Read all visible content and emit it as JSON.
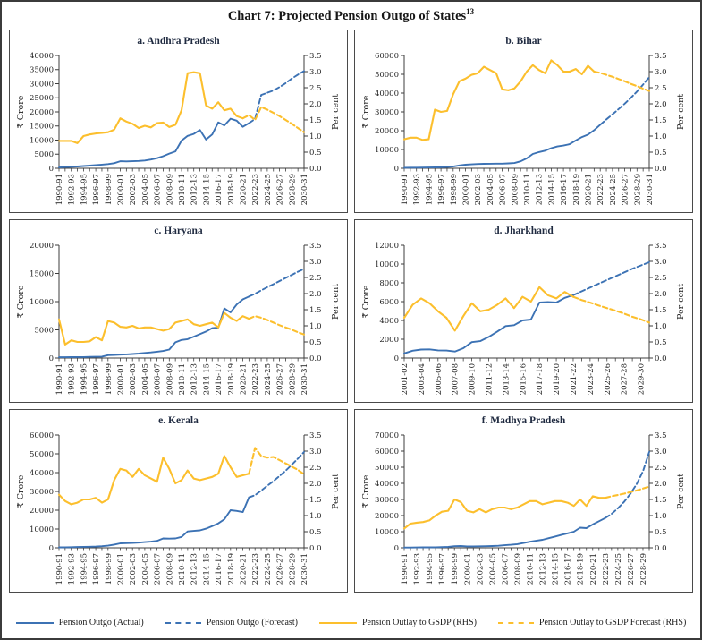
{
  "page": {
    "title": "Chart 7: Projected Pension Outgo of States",
    "title_sup": "13",
    "legend_position": "bottom"
  },
  "colors": {
    "actual_blue": "#3c72b4",
    "gsdp_yellow": "#fcbf2d",
    "axis": "#3d3d3d",
    "text": "#1e1e1e",
    "panel_title": "#1f2a40"
  },
  "legend": [
    {
      "label": "Pension Outgo (Actual)",
      "color": "#3c72b4",
      "dash": false
    },
    {
      "label": "Pension Outgo (Forecast)",
      "color": "#3c72b4",
      "dash": true
    },
    {
      "label": "Pension Outlay to GSDP (RHS)",
      "color": "#fcbf2d",
      "dash": false
    },
    {
      "label": "Pension Outlay to GSDP Forecast (RHS)",
      "color": "#fcbf2d",
      "dash": true
    }
  ],
  "chart_data": [
    {
      "id": "a",
      "type": "line",
      "title": "a. Andhra Pradesh",
      "ylabel_left": "₹ Crore",
      "ylabel_right": "Per cent",
      "left_axis": {
        "max": 40000,
        "step": 5000
      },
      "right_axis": {
        "max": 3.5,
        "step": 0.5
      },
      "label_every": 2,
      "years": [
        "1990-91",
        "1991-92",
        "1992-93",
        "1993-94",
        "1994-95",
        "1995-96",
        "1996-97",
        "1997-98",
        "1998-99",
        "1999-00",
        "2000-01",
        "2001-02",
        "2002-03",
        "2003-04",
        "2004-05",
        "2005-06",
        "2006-07",
        "2007-08",
        "2008-09",
        "2009-10",
        "2010-11",
        "2011-12",
        "2012-13",
        "2013-14",
        "2014-15",
        "2015-16",
        "2016-17",
        "2017-18",
        "2018-19",
        "2019-20",
        "2020-21",
        "2021-22",
        "2022-23",
        "2023-24",
        "2024-25",
        "2025-26",
        "2026-27",
        "2027-28",
        "2028-29",
        "2029-30",
        "2030-31"
      ],
      "series": {
        "actual": [
          300,
          400,
          500,
          650,
          800,
          950,
          1100,
          1300,
          1500,
          1800,
          2500,
          2450,
          2500,
          2600,
          2750,
          3100,
          3600,
          4300,
          5200,
          6000,
          9800,
          11500,
          12200,
          13600,
          10200,
          12000,
          16300,
          15200,
          17600,
          16900,
          14700,
          16000
        ],
        "forecast": {
          "start": 31,
          "values": [
            16000,
            17500,
            26000,
            26800,
            27600,
            28800,
            30200,
            31800,
            33200,
            34500
          ]
        },
        "gsdp": [
          0.85,
          0.85,
          0.85,
          0.78,
          1.0,
          1.05,
          1.08,
          1.1,
          1.12,
          1.2,
          1.55,
          1.45,
          1.38,
          1.25,
          1.32,
          1.27,
          1.4,
          1.42,
          1.28,
          1.35,
          1.8,
          2.95,
          2.98,
          2.95,
          1.95,
          1.85,
          2.05,
          1.8,
          1.85,
          1.62,
          1.55
        ],
        "gsdp_forecast": {
          "start": 30,
          "values": [
            1.55,
            1.65,
            1.5,
            1.9,
            1.82,
            1.72,
            1.62,
            1.5,
            1.38,
            1.25,
            1.12
          ]
        }
      }
    },
    {
      "id": "b",
      "type": "line",
      "title": "b. Bihar",
      "ylabel_left": "₹ Crore",
      "ylabel_right": "Per cent",
      "left_axis": {
        "max": 60000,
        "step": 10000
      },
      "right_axis": {
        "max": 3.5,
        "step": 0.5
      },
      "label_every": 2,
      "years": [
        "1990-91",
        "1991-92",
        "1992-93",
        "1993-94",
        "1994-95",
        "1995-96",
        "1996-97",
        "1997-98",
        "1998-99",
        "1999-00",
        "2000-01",
        "2001-02",
        "2002-03",
        "2003-04",
        "2004-05",
        "2005-06",
        "2006-07",
        "2007-08",
        "2008-09",
        "2009-10",
        "2010-11",
        "2011-12",
        "2012-13",
        "2013-14",
        "2014-15",
        "2015-16",
        "2016-17",
        "2017-18",
        "2018-19",
        "2019-20",
        "2020-21",
        "2021-22",
        "2022-23",
        "2023-24",
        "2024-25",
        "2025-26",
        "2026-27",
        "2027-28",
        "2028-29",
        "2029-30",
        "2030-31"
      ],
      "series": {
        "actual": [
          300,
          320,
          350,
          380,
          420,
          460,
          520,
          650,
          950,
          1500,
          1900,
          2100,
          2300,
          2400,
          2450,
          2500,
          2500,
          2600,
          2800,
          3700,
          5300,
          7600,
          8600,
          9400,
          10700,
          11600,
          12100,
          12800,
          14800,
          16600,
          17900,
          20300,
          23200
        ],
        "forecast": {
          "start": 32,
          "values": [
            23200,
            26000,
            28700,
            31500,
            34400,
            37500,
            40800,
            44500,
            48500
          ]
        },
        "gsdp": [
          0.9,
          0.95,
          0.95,
          0.88,
          0.9,
          1.82,
          1.75,
          1.78,
          2.3,
          2.7,
          2.78,
          2.9,
          2.95,
          3.15,
          3.05,
          2.95,
          2.45,
          2.42,
          2.48,
          2.7,
          3.0,
          3.2,
          3.05,
          2.95,
          3.35,
          3.2,
          3.0,
          3.0,
          3.08,
          2.92,
          3.18,
          3.0
        ],
        "gsdp_forecast": {
          "start": 31,
          "values": [
            3.0,
            2.96,
            2.9,
            2.84,
            2.77,
            2.7,
            2.62,
            2.55,
            2.47,
            2.4
          ]
        }
      }
    },
    {
      "id": "c",
      "type": "line",
      "title": "c. Haryana",
      "ylabel_left": "₹ Crore",
      "ylabel_right": "Per cent",
      "left_axis": {
        "max": 20000,
        "step": 5000
      },
      "right_axis": {
        "max": 3.5,
        "step": 0.5
      },
      "label_every": 2,
      "years": [
        "1990-91",
        "1991-92",
        "1992-93",
        "1993-94",
        "1994-95",
        "1995-96",
        "1996-97",
        "1997-98",
        "1998-99",
        "1999-00",
        "2000-01",
        "2001-02",
        "2002-03",
        "2003-04",
        "2004-05",
        "2005-06",
        "2006-07",
        "2007-08",
        "2008-09",
        "2009-10",
        "2010-11",
        "2011-12",
        "2012-13",
        "2013-14",
        "2014-15",
        "2015-16",
        "2016-17",
        "2017-18",
        "2018-19",
        "2019-20",
        "2020-21",
        "2021-22",
        "2022-23",
        "2023-24",
        "2024-25",
        "2025-26",
        "2026-27",
        "2027-28",
        "2028-29",
        "2029-30",
        "2030-31"
      ],
      "series": {
        "actual": [
          150,
          150,
          160,
          170,
          180,
          200,
          230,
          260,
          500,
          550,
          600,
          650,
          720,
          800,
          900,
          1000,
          1120,
          1260,
          1500,
          2800,
          3200,
          3350,
          3800,
          4250,
          4700,
          5300,
          5400,
          8800,
          8100,
          9500,
          10400,
          10900
        ],
        "forecast": {
          "start": 31,
          "values": [
            10900,
            11400,
            12000,
            12550,
            13100,
            13650,
            14200,
            14750,
            15300,
            15800
          ]
        },
        "gsdp": [
          1.2,
          0.42,
          0.55,
          0.5,
          0.5,
          0.52,
          0.65,
          0.55,
          1.15,
          1.1,
          0.97,
          0.95,
          1.0,
          0.92,
          0.95,
          0.95,
          0.9,
          0.85,
          0.9,
          1.1,
          1.15,
          1.2,
          1.05,
          1.0,
          1.05,
          1.1,
          0.95,
          1.4,
          1.25,
          1.15,
          1.3,
          1.22
        ],
        "gsdp_forecast": {
          "start": 31,
          "values": [
            1.22,
            1.3,
            1.25,
            1.18,
            1.1,
            1.02,
            0.95,
            0.88,
            0.8,
            0.73
          ]
        }
      }
    },
    {
      "id": "d",
      "type": "line",
      "title": "d. Jharkhand",
      "ylabel_left": "₹ Crore",
      "ylabel_right": "Per cent",
      "left_axis": {
        "max": 12000,
        "step": 2000
      },
      "right_axis": {
        "max": 3.5,
        "step": 0.5
      },
      "label_every": 2,
      "years": [
        "2001-02",
        "2002-03",
        "2003-04",
        "2004-05",
        "2005-06",
        "2006-07",
        "2007-08",
        "2008-09",
        "2009-10",
        "2010-11",
        "2011-12",
        "2012-13",
        "2013-14",
        "2014-15",
        "2015-16",
        "2016-17",
        "2017-18",
        "2018-19",
        "2019-20",
        "2020-21",
        "2021-22",
        "2022-23",
        "2023-24",
        "2024-25",
        "2025-26",
        "2026-27",
        "2027-28",
        "2028-29",
        "2029-30",
        "2030-31"
      ],
      "series": {
        "actual": [
          500,
          780,
          900,
          920,
          820,
          800,
          700,
          1050,
          1700,
          1800,
          2250,
          2800,
          3400,
          3500,
          4000,
          4100,
          5900,
          5950,
          5900,
          6400,
          6700
        ],
        "forecast": {
          "start": 20,
          "values": [
            6700,
            7100,
            7500,
            7900,
            8300,
            8700,
            9100,
            9500,
            9850,
            10200
          ]
        },
        "gsdp": [
          1.25,
          1.65,
          1.85,
          1.7,
          1.45,
          1.25,
          0.85,
          1.3,
          1.7,
          1.45,
          1.5,
          1.65,
          1.85,
          1.55,
          1.9,
          1.75,
          2.2,
          1.95,
          1.85,
          2.05,
          1.9
        ],
        "gsdp_forecast": {
          "start": 20,
          "values": [
            1.9,
            1.8,
            1.72,
            1.63,
            1.55,
            1.47,
            1.38,
            1.28,
            1.2,
            1.1
          ]
        }
      }
    },
    {
      "id": "e",
      "type": "line",
      "title": "e. Kerala",
      "ylabel_left": "₹ Crore",
      "ylabel_right": "Per cent",
      "left_axis": {
        "max": 60000,
        "step": 10000
      },
      "right_axis": {
        "max": 3.5,
        "step": 0.5
      },
      "label_every": 2,
      "years": [
        "1990-91",
        "1991-92",
        "1992-93",
        "1993-94",
        "1994-95",
        "1995-96",
        "1996-97",
        "1997-98",
        "1998-99",
        "1999-00",
        "2000-01",
        "2001-02",
        "2002-03",
        "2003-04",
        "2004-05",
        "2005-06",
        "2006-07",
        "2007-08",
        "2008-09",
        "2009-10",
        "2010-11",
        "2011-12",
        "2012-13",
        "2013-14",
        "2014-15",
        "2015-16",
        "2016-17",
        "2017-18",
        "2018-19",
        "2019-20",
        "2020-21",
        "2021-22",
        "2022-23",
        "2023-24",
        "2024-25",
        "2025-26",
        "2026-27",
        "2027-28",
        "2028-29",
        "2029-30",
        "2030-31"
      ],
      "series": {
        "actual": [
          250,
          300,
          350,
          420,
          500,
          580,
          680,
          850,
          1150,
          1700,
          2400,
          2500,
          2600,
          2750,
          3050,
          3300,
          3700,
          5000,
          4900,
          5000,
          5800,
          8700,
          9000,
          9300,
          10200,
          11500,
          13000,
          15200,
          20000,
          19600,
          19000,
          26800
        ],
        "forecast": {
          "start": 31,
          "values": [
            26800,
            28000,
            30500,
            33000,
            35500,
            38200,
            41000,
            44200,
            47500,
            51000
          ]
        },
        "gsdp": [
          1.65,
          1.45,
          1.35,
          1.4,
          1.5,
          1.5,
          1.55,
          1.4,
          1.5,
          2.1,
          2.45,
          2.4,
          2.2,
          2.45,
          2.25,
          2.15,
          2.05,
          2.8,
          2.45,
          2.0,
          2.1,
          2.4,
          2.15,
          2.1,
          2.15,
          2.2,
          2.3,
          2.85,
          2.5,
          2.2,
          2.25,
          2.3
        ],
        "gsdp_forecast": {
          "start": 31,
          "values": [
            2.3,
            3.1,
            2.85,
            2.8,
            2.82,
            2.72,
            2.62,
            2.52,
            2.42,
            2.28
          ]
        }
      }
    },
    {
      "id": "f",
      "type": "line",
      "title": "f. Madhya Pradesh",
      "ylabel_left": "₹ Crore",
      "ylabel_right": "Per cent",
      "left_axis": {
        "max": 70000,
        "step": 10000
      },
      "right_axis": {
        "max": 3.5,
        "step": 0.5
      },
      "label_every": 2,
      "years": [
        "1990-91",
        "1991-92",
        "1992-93",
        "1993-94",
        "1994-95",
        "1995-96",
        "1996-97",
        "1997-98",
        "1998-99",
        "1999-00",
        "2000-01",
        "2001-02",
        "2002-03",
        "2003-04",
        "2004-05",
        "2005-06",
        "2006-07",
        "2007-08",
        "2008-09",
        "2009-10",
        "2010-11",
        "2011-12",
        "2012-13",
        "2013-14",
        "2014-15",
        "2015-16",
        "2016-17",
        "2017-18",
        "2018-19",
        "2019-20",
        "2020-21",
        "2021-22",
        "2022-23",
        "2023-24",
        "2024-25",
        "2025-26",
        "2026-27",
        "2027-28",
        "2028-29",
        "2029-30"
      ],
      "series": {
        "actual": [
          150,
          180,
          220,
          260,
          300,
          360,
          450,
          600,
          1000,
          1100,
          900,
          900,
          950,
          1000,
          1100,
          1300,
          1600,
          1900,
          2300,
          3000,
          3800,
          4400,
          5000,
          6000,
          7000,
          8000,
          9000,
          10000,
          12500,
          12200,
          14500,
          16500,
          18500
        ],
        "forecast": {
          "start": 32,
          "values": [
            18500,
            21000,
            24500,
            28500,
            33500,
            39500,
            47500,
            59500
          ]
        },
        "gsdp": [
          0.6,
          0.75,
          0.78,
          0.8,
          0.85,
          1.0,
          1.12,
          1.15,
          1.5,
          1.42,
          1.15,
          1.1,
          1.2,
          1.1,
          1.2,
          1.25,
          1.25,
          1.2,
          1.25,
          1.35,
          1.45,
          1.45,
          1.35,
          1.4,
          1.45,
          1.45,
          1.4,
          1.3,
          1.5,
          1.3,
          1.6,
          1.55,
          1.55
        ],
        "gsdp_forecast": {
          "start": 32,
          "values": [
            1.55,
            1.6,
            1.64,
            1.68,
            1.73,
            1.78,
            1.84,
            1.9
          ]
        }
      }
    }
  ]
}
